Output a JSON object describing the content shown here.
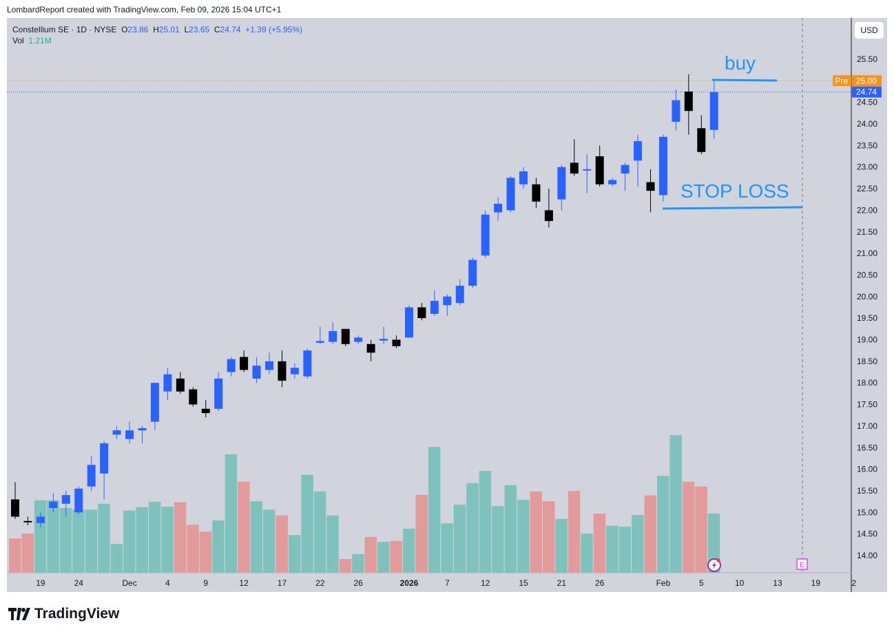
{
  "credit": "LombardReport created with TradingView.com, Feb 09, 2026 15:04 UTC+1",
  "legend": {
    "symbol": "Constellium SE · 1D · NYSE",
    "o_label": "O",
    "o": "23.86",
    "h_label": "H",
    "h": "25.01",
    "l_label": "L",
    "l": "23.65",
    "c_label": "C",
    "c": "24.74",
    "change": "+1.39 (+5.95%)",
    "vol_label": "Vol",
    "vol": "1.21M"
  },
  "currency": "USD",
  "brand": "TradingView",
  "colors": {
    "up": "#2962ff",
    "down": "#000000",
    "vol_up": "#7fc2bd",
    "vol_down": "#e39a9b",
    "annotation": "#2196f3",
    "pre": "#f7931a",
    "last": "#2962ff"
  },
  "chart_data": {
    "type": "candlestick",
    "title": "Constellium SE · 1D · NYSE",
    "ylim": [
      13.6,
      26.0
    ],
    "y_ticks": [
      "14.00",
      "14.50",
      "15.00",
      "15.50",
      "16.00",
      "16.50",
      "17.00",
      "17.50",
      "18.00",
      "18.50",
      "19.00",
      "19.50",
      "20.00",
      "20.50",
      "21.00",
      "21.50",
      "22.00",
      "22.50",
      "23.00",
      "23.50",
      "24.00",
      "24.50",
      "25.50"
    ],
    "x_ticks": [
      {
        "label": "19",
        "i": 2
      },
      {
        "label": "24",
        "i": 5
      },
      {
        "label": "Dec",
        "i": 9
      },
      {
        "label": "4",
        "i": 12
      },
      {
        "label": "9",
        "i": 15
      },
      {
        "label": "12",
        "i": 18
      },
      {
        "label": "17",
        "i": 21
      },
      {
        "label": "22",
        "i": 24
      },
      {
        "label": "26",
        "i": 27
      },
      {
        "label": "2026",
        "i": 31
      },
      {
        "label": "7",
        "i": 34
      },
      {
        "label": "12",
        "i": 37
      },
      {
        "label": "15",
        "i": 40
      },
      {
        "label": "21",
        "i": 43
      },
      {
        "label": "26",
        "i": 46
      },
      {
        "label": "Feb",
        "i": 51
      },
      {
        "label": "5",
        "i": 54
      },
      {
        "label": "10",
        "i": 57
      },
      {
        "label": "13",
        "i": 60
      },
      {
        "label": "19",
        "i": 63
      },
      {
        "label": "2",
        "i": 66
      }
    ],
    "candles": [
      [
        15.3,
        15.7,
        14.85,
        14.9
      ],
      [
        14.8,
        14.9,
        14.7,
        14.78
      ],
      [
        14.75,
        15.0,
        14.65,
        14.9
      ],
      [
        15.1,
        15.45,
        15.0,
        15.25
      ],
      [
        15.2,
        15.5,
        14.9,
        15.4
      ],
      [
        15.0,
        15.6,
        14.95,
        15.55
      ],
      [
        15.6,
        16.3,
        15.5,
        16.1
      ],
      [
        15.9,
        16.65,
        15.3,
        16.6
      ],
      [
        16.8,
        17.0,
        16.7,
        16.9
      ],
      [
        16.7,
        17.1,
        16.6,
        16.9
      ],
      [
        16.9,
        17.0,
        16.6,
        16.95
      ],
      [
        17.1,
        18.0,
        16.9,
        18.0
      ],
      [
        17.8,
        18.35,
        17.6,
        18.2
      ],
      [
        18.1,
        18.25,
        17.75,
        17.8
      ],
      [
        17.85,
        17.9,
        17.45,
        17.5
      ],
      [
        17.4,
        17.6,
        17.2,
        17.3
      ],
      [
        17.4,
        18.25,
        17.35,
        18.1
      ],
      [
        18.25,
        18.6,
        18.15,
        18.55
      ],
      [
        18.6,
        18.75,
        18.25,
        18.3
      ],
      [
        18.1,
        18.6,
        18.0,
        18.4
      ],
      [
        18.3,
        18.7,
        18.2,
        18.5
      ],
      [
        18.5,
        18.75,
        17.9,
        18.05
      ],
      [
        18.2,
        18.45,
        18.1,
        18.35
      ],
      [
        18.15,
        18.8,
        18.1,
        18.75
      ],
      [
        18.93,
        19.3,
        18.9,
        18.97
      ],
      [
        18.95,
        19.4,
        18.9,
        19.2
      ],
      [
        19.25,
        19.25,
        18.85,
        18.9
      ],
      [
        18.95,
        19.1,
        18.9,
        19.05
      ],
      [
        18.9,
        19.0,
        18.5,
        18.7
      ],
      [
        18.98,
        19.3,
        18.9,
        19.02
      ],
      [
        19.0,
        19.1,
        18.8,
        18.85
      ],
      [
        19.05,
        19.8,
        19.05,
        19.75
      ],
      [
        19.75,
        19.85,
        19.45,
        19.5
      ],
      [
        19.6,
        20.15,
        19.55,
        19.9
      ],
      [
        19.8,
        20.05,
        19.55,
        20.0
      ],
      [
        19.85,
        20.4,
        19.8,
        20.25
      ],
      [
        20.25,
        20.9,
        20.2,
        20.85
      ],
      [
        20.95,
        22.0,
        20.9,
        21.9
      ],
      [
        21.95,
        22.3,
        21.75,
        22.15
      ],
      [
        22.0,
        22.8,
        21.95,
        22.75
      ],
      [
        22.6,
        23.0,
        22.5,
        22.9
      ],
      [
        22.6,
        22.75,
        22.05,
        22.2
      ],
      [
        22.0,
        22.5,
        21.6,
        21.75
      ],
      [
        22.25,
        23.05,
        22.0,
        23.0
      ],
      [
        23.1,
        23.65,
        22.8,
        22.85
      ],
      [
        22.95,
        23.3,
        22.4,
        22.95
      ],
      [
        23.25,
        23.5,
        22.55,
        22.6
      ],
      [
        22.6,
        22.75,
        22.55,
        22.7
      ],
      [
        22.85,
        23.1,
        22.45,
        23.05
      ],
      [
        23.15,
        23.75,
        22.55,
        23.6
      ],
      [
        22.65,
        22.95,
        21.95,
        22.45
      ],
      [
        22.35,
        23.75,
        22.2,
        23.7
      ],
      [
        24.05,
        24.8,
        23.85,
        24.55
      ],
      [
        24.75,
        25.15,
        23.75,
        24.3
      ],
      [
        23.9,
        24.2,
        23.3,
        23.35
      ],
      [
        23.86,
        25.01,
        23.65,
        24.74
      ]
    ],
    "volume_M": [
      0.7,
      0.8,
      1.48,
      1.48,
      1.32,
      1.29,
      1.29,
      1.41,
      0.59,
      1.27,
      1.34,
      1.45,
      1.35,
      1.44,
      0.98,
      0.84,
      1.07,
      2.42,
      1.86,
      1.46,
      1.29,
      1.17,
      0.77,
      2.0,
      1.66,
      1.17,
      0.28,
      0.38,
      0.73,
      0.63,
      0.65,
      0.9,
      1.59,
      2.57,
      1.01,
      1.39,
      1.83,
      2.08,
      1.36,
      1.79,
      1.49,
      1.66,
      1.46,
      1.1,
      1.67,
      0.8,
      1.21,
      0.96,
      0.94,
      1.18,
      1.58,
      1.98,
      2.81,
      1.86,
      1.76,
      1.21
    ],
    "pre_market": {
      "label": "Pre",
      "price": 25.0,
      "text": "25.00"
    },
    "last_price": {
      "price": 24.74,
      "text": "24.74"
    },
    "annotations": [
      {
        "text": "buy",
        "price": 25.02,
        "from_i": 55,
        "to_i": 60
      },
      {
        "text": "STOP LOSS",
        "price": 22.05,
        "from_i": 51,
        "to_i": 62
      }
    ],
    "event_markers": [
      {
        "label": "E",
        "type": "earnings",
        "i": 62
      },
      {
        "label": "",
        "type": "dividend-flash",
        "i": 55
      }
    ]
  }
}
